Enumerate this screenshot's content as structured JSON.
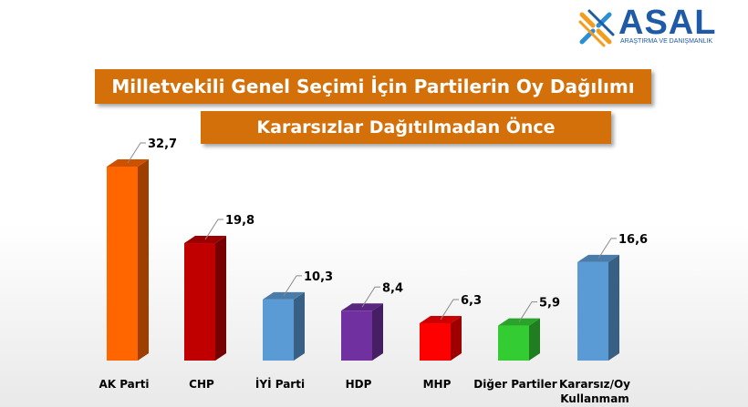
{
  "logo": {
    "text": "ASAL",
    "subtitle": "ARAŞTIRMA VE DANIŞMANLIK"
  },
  "chart_data": {
    "type": "bar",
    "title": "Milletvekili Genel Seçimi İçin Partilerin Oy Dağılımı",
    "subtitle": "Kararsızlar Dağıtılmadan Önce",
    "categories": [
      "AK Parti",
      "CHP",
      "İYİ Parti",
      "HDP",
      "MHP",
      "Diğer Partiler",
      "Kararsız/Oy Kullanmam"
    ],
    "category_lines": [
      [
        "AK Parti"
      ],
      [
        "CHP"
      ],
      [
        "İYİ Parti"
      ],
      [
        "HDP"
      ],
      [
        "MHP"
      ],
      [
        "Diğer Partiler"
      ],
      [
        "Kararsız/Oy",
        "Kullanmam"
      ]
    ],
    "values": [
      32.7,
      19.8,
      10.3,
      8.4,
      6.3,
      5.9,
      16.6
    ],
    "value_labels": [
      "32,7",
      "19,8",
      "10,3",
      "8,4",
      "6,3",
      "5,9",
      "16,6"
    ],
    "colors": [
      "#ff6600",
      "#c00000",
      "#5b9bd5",
      "#7030a0",
      "#ff0000",
      "#33cc33",
      "#5b9bd5"
    ],
    "ylim": [
      0,
      32.7
    ],
    "grid": false,
    "legend": "none"
  }
}
